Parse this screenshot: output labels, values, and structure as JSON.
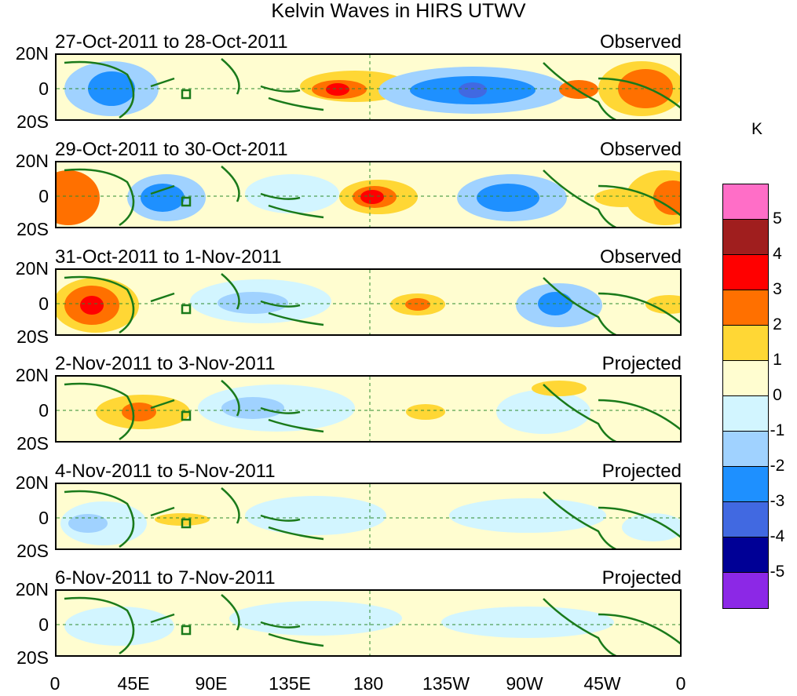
{
  "title": "Kelvin Waves in HIRS UTWV",
  "lat_labels": [
    "20N",
    "0",
    "20S"
  ],
  "lon_labels": [
    "0",
    "45E",
    "90E",
    "135E",
    "180",
    "135W",
    "90W",
    "45W",
    "0"
  ],
  "colorbar": {
    "unit": "K",
    "labels": [
      "5",
      "4",
      "3",
      "2",
      "1",
      "0",
      "-1",
      "-2",
      "-3",
      "-4",
      "-5"
    ],
    "colors": [
      "#ff6ec7",
      "#a01e1e",
      "#ff0000",
      "#ff7000",
      "#ffd735",
      "#fffdd0",
      "#d2f5ff",
      "#a0d2ff",
      "#1e90ff",
      "#4169e1",
      "#000096",
      "#8c28e6"
    ]
  },
  "panels": [
    {
      "dates": "27-Oct-2011 to 28-Oct-2011",
      "type": "Observed"
    },
    {
      "dates": "29-Oct-2011 to 30-Oct-2011",
      "type": "Observed"
    },
    {
      "dates": "31-Oct-2011 to 1-Nov-2011",
      "type": "Observed"
    },
    {
      "dates": "2-Nov-2011 to 3-Nov-2011",
      "type": "Projected"
    },
    {
      "dates": "4-Nov-2011 to 5-Nov-2011",
      "type": "Projected"
    },
    {
      "dates": "6-Nov-2011 to 7-Nov-2011",
      "type": "Projected"
    }
  ]
}
